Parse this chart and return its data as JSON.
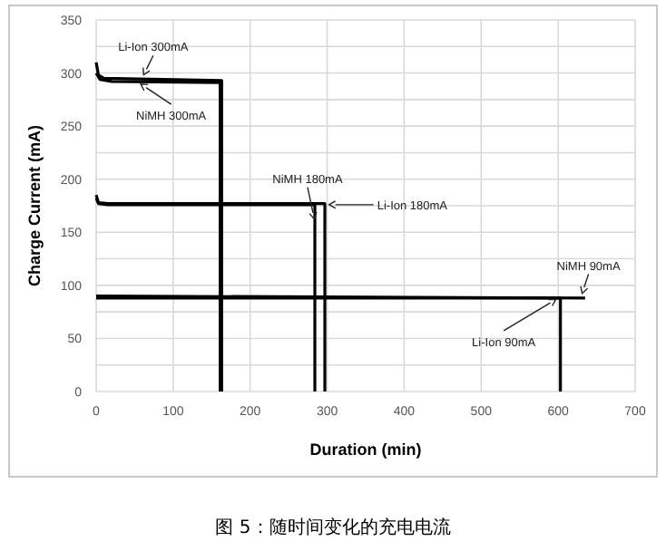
{
  "chart_data": {
    "type": "line",
    "xlabel": "Duration (min)",
    "ylabel": "Charge Current (mA)",
    "xlim": [
      0,
      700
    ],
    "xticks": [
      0,
      100,
      200,
      300,
      400,
      500,
      600,
      700
    ],
    "ylim": [
      0,
      350
    ],
    "yticks": [
      0,
      {
        "value": 25,
        "label": null
      },
      50,
      {
        "value": 75,
        "label": null
      },
      100,
      {
        "value": 125,
        "label": null
      },
      150,
      {
        "value": 175,
        "label": null
      },
      200,
      {
        "value": 225,
        "label": null
      },
      250,
      {
        "value": 275,
        "label": null
      },
      300,
      {
        "value": 325,
        "label": null
      },
      350
    ],
    "grid": true,
    "series": [
      {
        "color": "#000000",
        "x": [
          0,
          3,
          10,
          163,
          163
        ],
        "values": [
          310,
          298,
          295,
          293,
          0
        ]
      },
      {
        "color": "#000000",
        "x": [
          0,
          5,
          20,
          161,
          161
        ],
        "values": [
          300,
          294,
          292,
          291,
          0
        ]
      },
      {
        "color": "#000000",
        "x": [
          0,
          3,
          15,
          284,
          284
        ],
        "values": [
          182,
          177,
          176,
          176,
          0
        ]
      },
      {
        "color": "#000000",
        "x": [
          0,
          3,
          15,
          297,
          297
        ],
        "values": [
          185,
          178,
          177,
          177,
          0
        ]
      },
      {
        "color": "#000000",
        "x": [
          0,
          635
        ],
        "values": [
          90,
          88
        ]
      },
      {
        "color": "#000000",
        "x": [
          0,
          603,
          603
        ],
        "values": [
          88,
          88,
          0
        ]
      }
    ],
    "annotations": [
      {
        "text": "Li-Ion 300mA",
        "x": 60,
        "y": 296
      },
      {
        "text": "NiMH 300mA",
        "x": 55,
        "y": 291
      },
      {
        "text": "NiMH 180mA",
        "x": 284,
        "y": 160
      },
      {
        "text": "Li-Ion 180mA",
        "x": 299,
        "y": 176
      },
      {
        "text": "NiMH 90mA",
        "x": 630,
        "y": 90
      },
      {
        "text": "Li-Ion 90mA",
        "x": 600,
        "y": 88
      },
      "图 5：随时间变化的充电电流"
    ]
  }
}
